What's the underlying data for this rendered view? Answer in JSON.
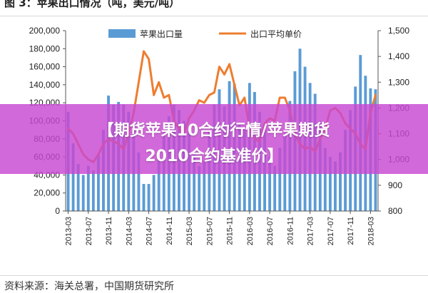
{
  "header": {
    "title": "图 3：苹果出口情况（吨，美元/吨）"
  },
  "footer": {
    "source": "资料来源：海关总署，中国期货研究所"
  },
  "overlay": {
    "line1": "【期货苹果10合约行情/苹果期货",
    "line2": "2010合约基准价】"
  },
  "colors": {
    "bar": "#5b9bd5",
    "line": "#ed7d31",
    "overlay": "#c848d2"
  },
  "chart_data": {
    "type": "bar+line",
    "title": "",
    "xlabel": "",
    "ylabel": "",
    "y_left_lim": [
      0,
      200000
    ],
    "y_left_ticks": [
      "0",
      "20,000",
      "40,000",
      "60,000",
      "80,000",
      "100,000",
      "120,000",
      "140,000",
      "160,000",
      "180,000",
      "200,000"
    ],
    "y_right_lim": [
      800,
      1500
    ],
    "y_right_ticks": [
      "800",
      "900",
      "1,000",
      "1,100",
      "1,200",
      "1,300",
      "1,400",
      "1,500"
    ],
    "x_tick_labels": [
      "2013-03",
      "2013-07",
      "2013-11",
      "2014-03",
      "2014-07",
      "2014-11",
      "2015-03",
      "2015-07",
      "2015-11",
      "2016-03",
      "2016-07",
      "2016-11",
      "2017-03",
      "2017-07",
      "2017-11",
      "2018-03"
    ],
    "legend_position": "top",
    "grid": false,
    "series": [
      {
        "name": "苹果出口量",
        "type": "bar",
        "axis": "left",
        "values": [
          110000,
          75000,
          52000,
          40000,
          50000,
          45000,
          62000,
          90000,
          128000,
          118000,
          121000,
          118000,
          110000,
          90000,
          65000,
          30000,
          30000,
          40000,
          60000,
          85000,
          105000,
          118000,
          112000,
          100000,
          88000,
          65000,
          50000,
          55000,
          90000,
          118000,
          135000,
          116000,
          144000,
          141000,
          95000,
          90000,
          142000,
          132000,
          110000,
          90000,
          60000,
          50000,
          70000,
          85000,
          122000,
          155000,
          180000,
          160000,
          142000,
          130000,
          100000,
          70000,
          60000,
          55000,
          65000,
          90000,
          112000,
          138000,
          173000,
          150000,
          136000,
          135000
        ]
      },
      {
        "name": "出口平均单价",
        "type": "line",
        "axis": "right",
        "values": [
          1120,
          1100,
          1060,
          1020,
          1000,
          990,
          1020,
          1060,
          1080,
          1070,
          1060,
          1040,
          1100,
          1180,
          1300,
          1420,
          1390,
          1250,
          1300,
          1240,
          1250,
          1150,
          1120,
          1100,
          1160,
          1190,
          1230,
          1220,
          1250,
          1260,
          1360,
          1330,
          1370,
          1290,
          1210,
          1240,
          1120,
          1080,
          1070,
          1140,
          1160,
          1150,
          1240,
          1240,
          1190,
          1100,
          1060,
          1040,
          1050,
          1030,
          1080,
          1120,
          1190,
          1200,
          1180,
          1140,
          1120,
          1100,
          1060,
          1040,
          1180,
          1250
        ]
      }
    ]
  }
}
